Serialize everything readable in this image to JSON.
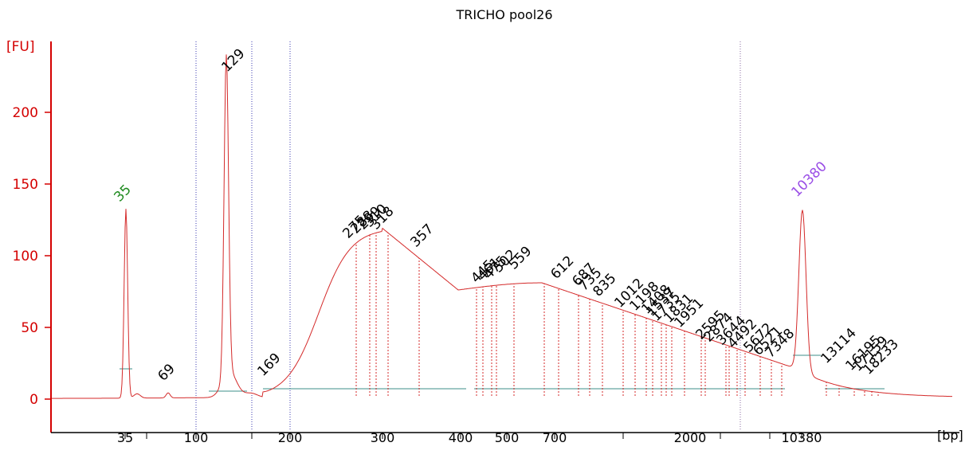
{
  "title": "TRICHO pool26",
  "colors": {
    "axis": "#d40000",
    "trace": "#d42a2a",
    "lower_marker_label": "#1f8a1f",
    "upper_marker_label": "#9a4ee6",
    "peak_label": "#000000",
    "ladder_line": "#3a3ab0",
    "baseline": "#3e8f8a"
  },
  "chart_data": {
    "type": "line",
    "title": "TRICHO pool26",
    "ylabel": "[FU]",
    "xlabel": "[bp]",
    "ylim": [
      -20,
      250
    ],
    "yticks": [
      "0",
      "50",
      "100",
      "150",
      "200"
    ],
    "xticks": [
      "35",
      "100",
      "200",
      "300",
      "400",
      "500",
      "700",
      "2000",
      "10380"
    ],
    "lower_marker": {
      "label": "35",
      "height": 132
    },
    "upper_marker": {
      "label": "10380",
      "height": 133
    },
    "peaks": [
      {
        "label": "35",
        "role": "lower-marker"
      },
      {
        "label": "69"
      },
      {
        "label": "129"
      },
      {
        "label": "169"
      },
      {
        "label": "275"
      },
      {
        "label": "288"
      },
      {
        "label": "299"
      },
      {
        "label": "310"
      },
      {
        "label": "318"
      },
      {
        "label": "357"
      },
      {
        "label": "445"
      },
      {
        "label": "461"
      },
      {
        "label": "475"
      },
      {
        "label": "502"
      },
      {
        "label": "559"
      },
      {
        "label": "612"
      },
      {
        "label": "687"
      },
      {
        "label": "735"
      },
      {
        "label": "835"
      },
      {
        "label": "1012"
      },
      {
        "label": "1198"
      },
      {
        "label": "1408"
      },
      {
        "label": "1537"
      },
      {
        "label": "1735"
      },
      {
        "label": "1831"
      },
      {
        "label": "1951"
      },
      {
        "label": "2595"
      },
      {
        "label": "2874"
      },
      {
        "label": "3644"
      },
      {
        "label": "4492"
      },
      {
        "label": "5672"
      },
      {
        "label": "6521"
      },
      {
        "label": "7348"
      },
      {
        "label": "10380",
        "role": "upper-marker"
      },
      {
        "label": "13114"
      },
      {
        "label": "16195"
      },
      {
        "label": "17159"
      },
      {
        "label": "18233"
      }
    ]
  }
}
